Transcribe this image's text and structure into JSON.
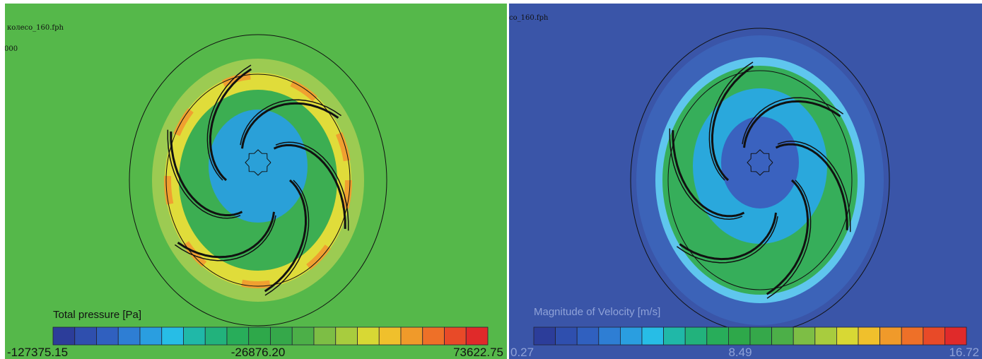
{
  "left": {
    "file": "колесо_160.fph",
    "stamp": "000",
    "legend_title": "Total pressure [Pa]",
    "scale_min": "-127375.15",
    "scale_mid": "-26876.20",
    "scale_max": "73622.75"
  },
  "right": {
    "file": "со_160.fph",
    "legend_title": "Magnitude of Velocity [m/s]",
    "scale_min": "0.27",
    "scale_mid": "8.49",
    "scale_max": "16.72"
  }
}
